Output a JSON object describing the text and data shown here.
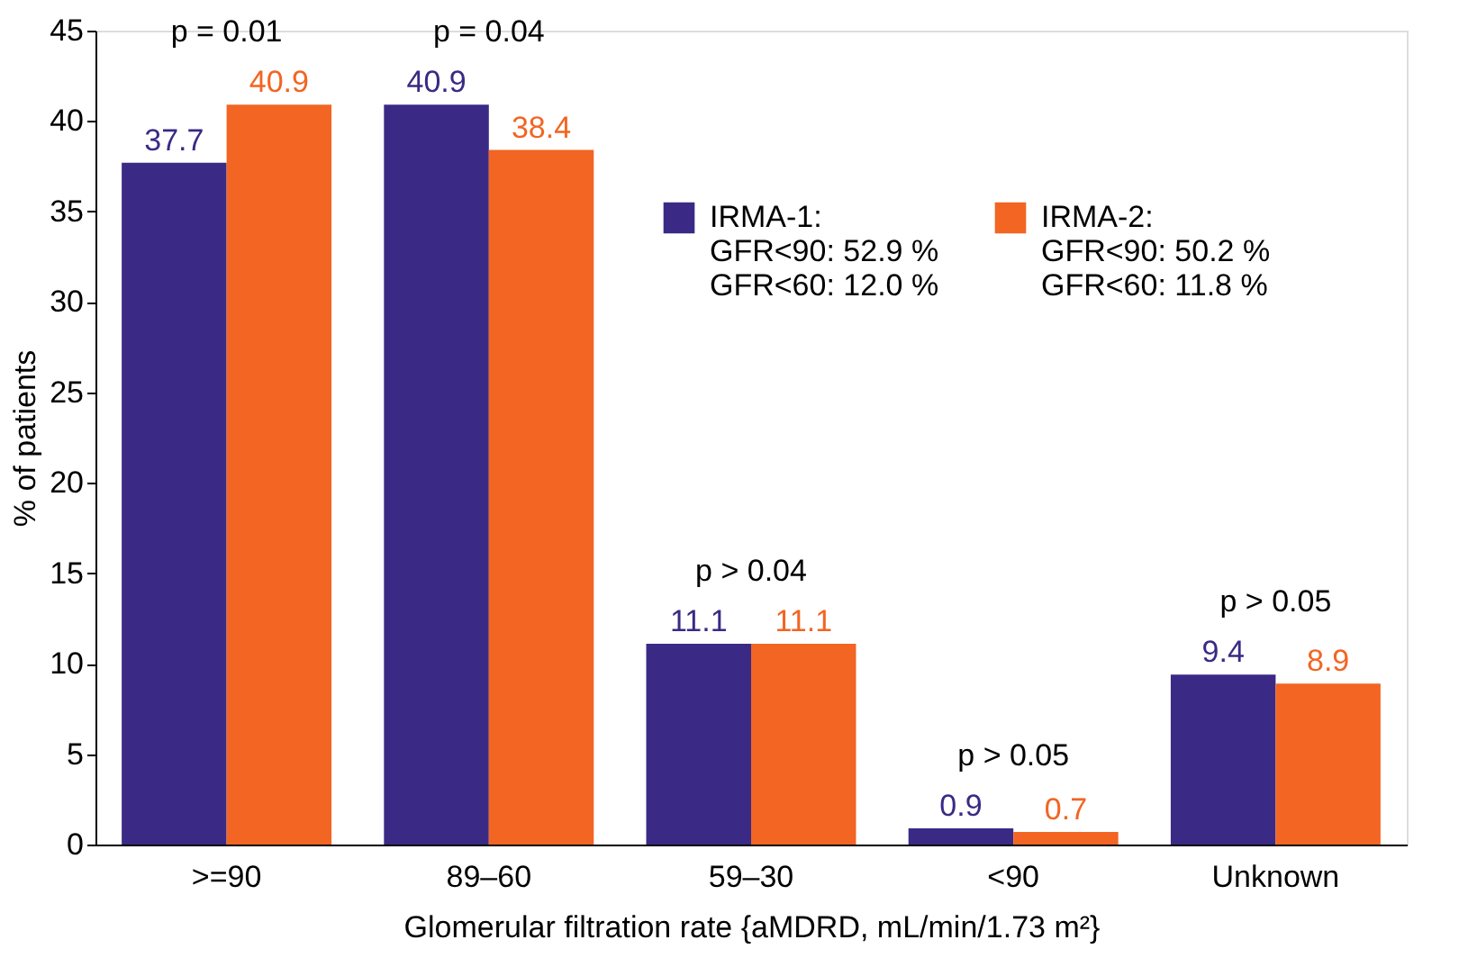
{
  "chart_data": {
    "type": "bar",
    "xlabel": "Glomerular filtration rate {aMDRD, mL/min/1.73 m²}",
    "ylabel": "% of patients",
    "categories": [
      ">=90",
      "89–60",
      "59–30",
      "<90",
      "Unknown"
    ],
    "series": [
      {
        "name": "IRMA-1:",
        "color": "#3a2a85",
        "values": [
          37.7,
          40.9,
          11.1,
          0.9,
          9.4
        ]
      },
      {
        "name": "IRMA-2:",
        "color": "#f26522",
        "values": [
          40.9,
          38.4,
          11.1,
          0.7,
          8.9
        ]
      }
    ],
    "ylim": [
      0,
      45
    ],
    "yticks": [
      0,
      5,
      10,
      15,
      20,
      25,
      30,
      35,
      40,
      45
    ],
    "data_labels": true,
    "grid": false,
    "legend": "top right",
    "annotations": [
      "p = 0.01",
      "p = 0.04",
      "p > 0.04",
      "p > 0.05",
      "p > 0.05",
      "GFR<90: 52.9 %",
      "GFR<60: 12.0 %",
      "GFR<90: 50.2 %",
      "GFR<60: 11.8 %"
    ]
  }
}
